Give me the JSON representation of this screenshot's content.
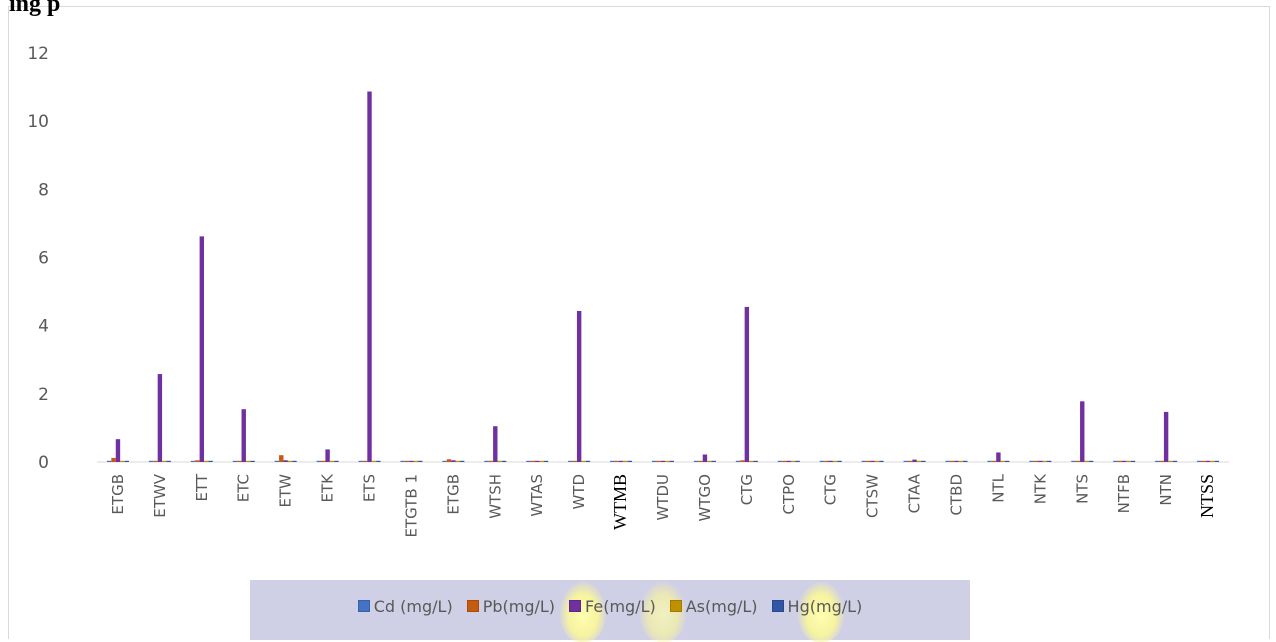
{
  "heading": "ing p",
  "colors": {
    "Cd": "#4472c4",
    "Pb": "#c55a11",
    "Fe": "#7030a0",
    "As": "#bf9000",
    "Hg": "#2f55a4",
    "axis": "#d9d9d9",
    "text": "#595959"
  },
  "chart_data": {
    "type": "bar",
    "title": "",
    "xlabel": "",
    "ylabel": "",
    "ylim": [
      0,
      12
    ],
    "yticks": [
      0,
      2,
      4,
      6,
      8,
      10,
      12
    ],
    "grid": false,
    "legend_position": "bottom",
    "categories": [
      "ETGB",
      "ETWV",
      "ETT",
      "ETC",
      "ETW",
      "ETK",
      "ETS",
      "ETGTB 1",
      "ETGB",
      "WTSH",
      "WTAS",
      "WTD",
      "WTMB",
      "WTDU",
      "WTGO",
      "CTG",
      "CTPO",
      "CTG",
      "CTSW",
      "CTAA",
      "CTBD",
      "NTL",
      "NTK",
      "NTS",
      "NTFB",
      "NTN",
      "NTSS"
    ],
    "serif_categories": [
      "WTMB",
      "NTSS"
    ],
    "series": [
      {
        "name": "Cd (mg/L)",
        "key": "Cd",
        "values": [
          0.01,
          0.01,
          0.01,
          0.01,
          0.01,
          0.01,
          0.01,
          0.01,
          0.01,
          0.01,
          0.01,
          0.01,
          0.01,
          0.01,
          0.01,
          0.01,
          0.01,
          0.01,
          0.01,
          0.01,
          0.01,
          0.01,
          0.01,
          0.01,
          0.01,
          0.01,
          0.01
        ]
      },
      {
        "name": "Pb(mg/L)",
        "key": "Pb",
        "values": [
          0.12,
          0.02,
          0.05,
          0.02,
          0.2,
          0.02,
          0.02,
          0.02,
          0.08,
          0.02,
          0.02,
          0.02,
          0.02,
          0.02,
          0.02,
          0.05,
          0.02,
          0.02,
          0.02,
          0.02,
          0.02,
          0.02,
          0.02,
          0.02,
          0.02,
          0.02,
          0.02
        ]
      },
      {
        "name": "Fe(mg/L)",
        "key": "Fe",
        "values": [
          0.67,
          2.58,
          6.62,
          1.55,
          0.05,
          0.37,
          10.87,
          0.02,
          0.05,
          1.05,
          0.02,
          4.43,
          0.02,
          0.02,
          0.22,
          4.55,
          0.02,
          0.02,
          0.02,
          0.07,
          0.02,
          0.28,
          0.02,
          1.78,
          0.02,
          1.47,
          0.02
        ]
      },
      {
        "name": "As(mg/L)",
        "key": "As",
        "values": [
          0.01,
          0.01,
          0.01,
          0.01,
          0.01,
          0.01,
          0.01,
          0.01,
          0.01,
          0.01,
          0.01,
          0.01,
          0.01,
          0.01,
          0.01,
          0.01,
          0.01,
          0.01,
          0.01,
          0.01,
          0.01,
          0.01,
          0.01,
          0.01,
          0.01,
          0.01,
          0.01
        ]
      },
      {
        "name": "Hg(mg/L)",
        "key": "Hg",
        "values": [
          0.01,
          0.01,
          0.01,
          0.01,
          0.01,
          0.01,
          0.01,
          0.01,
          0.01,
          0.01,
          0.01,
          0.01,
          0.01,
          0.01,
          0.01,
          0.01,
          0.01,
          0.01,
          0.01,
          0.01,
          0.01,
          0.01,
          0.01,
          0.01,
          0.01,
          0.01,
          0.01
        ]
      }
    ]
  }
}
